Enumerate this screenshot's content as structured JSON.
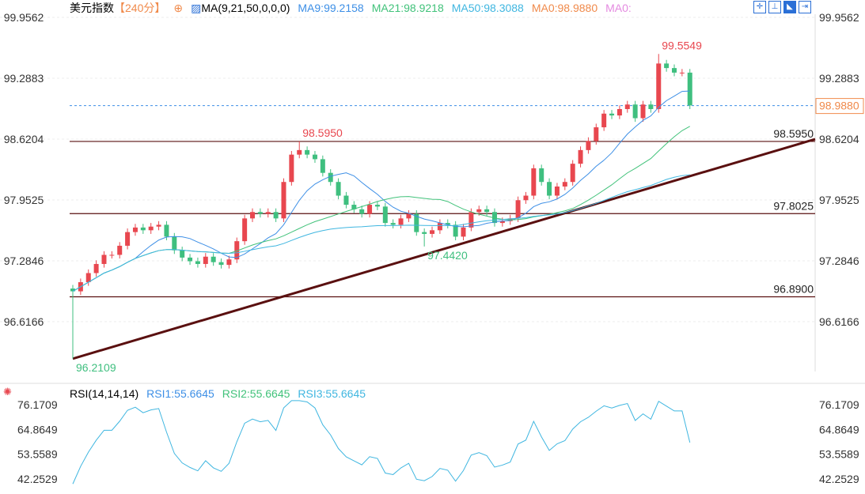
{
  "header": {
    "title": "美元指数",
    "period": "【240分】",
    "ma_label": "MA(9,21,50,0,0,0)",
    "ma9": "MA9:99.2158",
    "ma21": "MA21:98.9218",
    "ma50": "MA50:98.3088",
    "ma0a": "MA0:98.9880",
    "ma0b": "MA0:"
  },
  "rsi_header": {
    "label": "RSI(14,14,14)",
    "rsi1": "RSI1:55.6645",
    "rsi2": "RSI2:55.6645",
    "rsi3": "RSI3:55.6645"
  },
  "colors": {
    "up": "#e8474f",
    "down": "#3fbf7f",
    "ma9": "#3d8fe6",
    "ma21": "#41c27a",
    "ma50": "#3fb6e0",
    "ma0": "#f08a4b",
    "ma0b": "#e48ae0",
    "rsi": "#3fb6e0",
    "level": "#5a1010"
  },
  "chart_data": {
    "type": "candlestick",
    "y_ticks": [
      "99.9562",
      "99.2883",
      "98.6204",
      "97.9525",
      "97.2846",
      "96.6166"
    ],
    "rsi_ticks": [
      "76.1709",
      "64.8649",
      "53.5589",
      "42.2529"
    ],
    "ylim": [
      96.6166,
      99.9562
    ],
    "current_price": "98.9880",
    "levels": [
      {
        "value": 98.595,
        "label": "98.5950"
      },
      {
        "value": 97.8025,
        "label": "97.8025"
      },
      {
        "value": 96.89,
        "label": "96.8900"
      }
    ],
    "annotations": [
      {
        "index": 0,
        "value": 96.2109,
        "label": "96.2109",
        "pos": "below"
      },
      {
        "index": 29,
        "value": 98.595,
        "label": "98.5950",
        "pos": "above"
      },
      {
        "index": 45,
        "value": 97.442,
        "label": "97.4420",
        "pos": "below"
      },
      {
        "index": 75,
        "value": 99.5549,
        "label": "99.5549",
        "pos": "above"
      }
    ],
    "open0": 96.98,
    "closes": [
      96.95,
      97.05,
      97.15,
      97.25,
      97.35,
      97.35,
      97.45,
      97.6,
      97.65,
      97.62,
      97.66,
      97.68,
      97.55,
      97.4,
      97.32,
      97.28,
      97.25,
      97.33,
      97.27,
      97.24,
      97.3,
      97.5,
      97.75,
      97.82,
      97.8,
      97.82,
      97.75,
      98.15,
      98.45,
      98.5,
      98.45,
      98.4,
      98.25,
      98.15,
      98.0,
      97.9,
      97.85,
      97.8,
      97.9,
      97.88,
      97.7,
      97.68,
      97.75,
      97.8,
      97.6,
      97.58,
      97.62,
      97.7,
      97.68,
      97.55,
      97.65,
      97.82,
      97.85,
      97.82,
      97.7,
      97.72,
      97.75,
      97.95,
      98.0,
      98.3,
      98.15,
      98.0,
      98.1,
      98.15,
      98.35,
      98.5,
      98.6,
      98.75,
      98.9,
      98.88,
      98.95,
      99.0,
      98.85,
      99.0,
      98.95,
      99.45,
      99.4,
      99.35,
      99.35,
      98.99
    ]
  }
}
